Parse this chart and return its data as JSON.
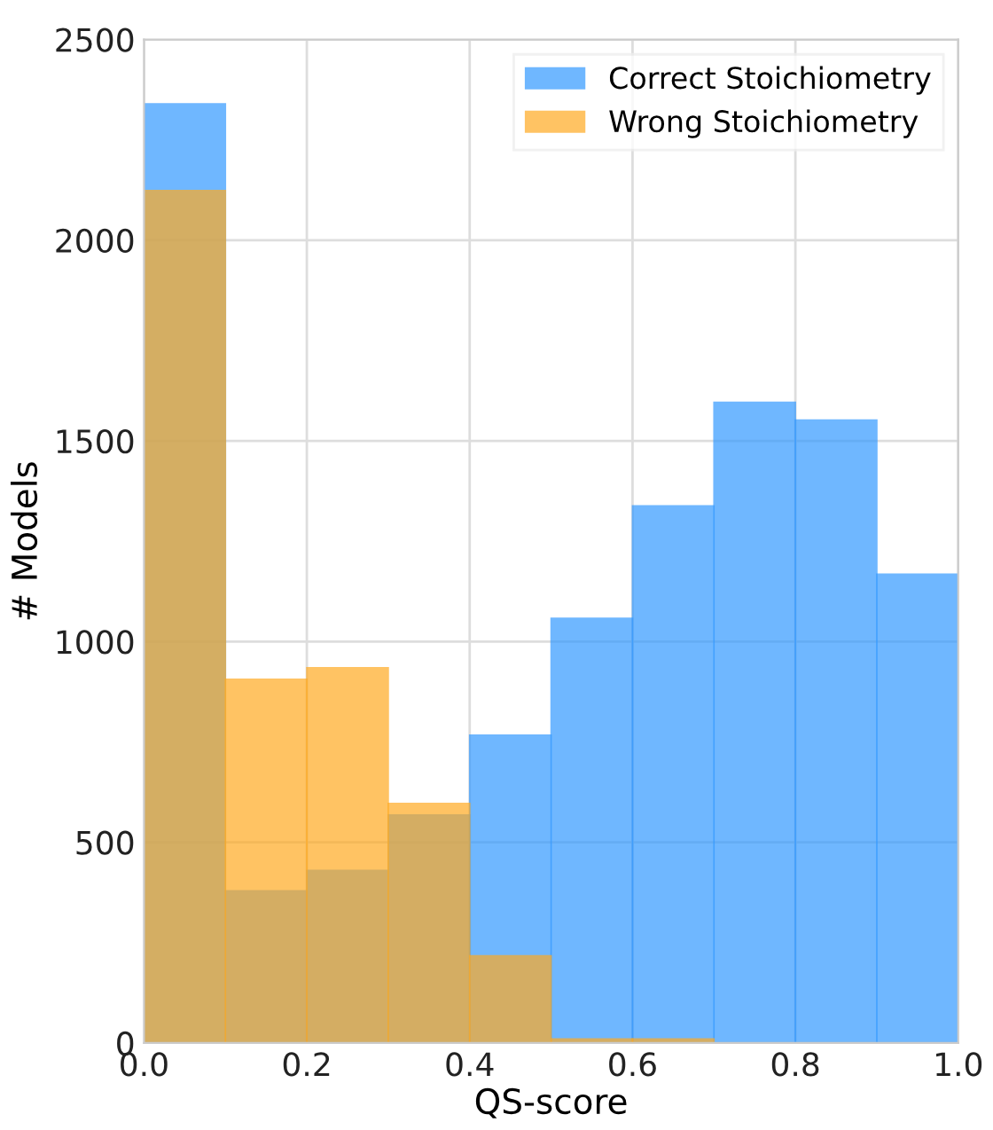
{
  "chart_data": {
    "type": "histogram",
    "xlabel": "QS-score",
    "ylabel": "# Models",
    "bins": [
      0.0,
      0.1,
      0.2,
      0.3,
      0.4,
      0.5,
      0.6,
      0.7,
      0.8,
      0.9,
      1.0
    ],
    "series": [
      {
        "name": "Correct Stoichiometry",
        "color": "#3399ff",
        "values": [
          2340,
          379,
          430,
          568,
          767,
          1058,
          1338,
          1596,
          1552,
          1168
        ]
      },
      {
        "name": "Wrong Stoichiometry",
        "color": "#ffaa22",
        "values": [
          2124,
          906,
          935,
          597,
          217,
          10,
          10,
          0,
          0,
          0
        ]
      }
    ],
    "xlim": [
      0.0,
      1.0
    ],
    "ylim": [
      0,
      2500
    ],
    "xticks": [
      {
        "value": 0.0,
        "label": "0.0"
      },
      {
        "value": 0.2,
        "label": "0.2"
      },
      {
        "value": 0.4,
        "label": "0.4"
      },
      {
        "value": 0.6,
        "label": "0.6"
      },
      {
        "value": 0.8,
        "label": "0.8"
      },
      {
        "value": 1.0,
        "label": "1.0"
      }
    ],
    "yticks": [
      0,
      500,
      1000,
      1500,
      2000,
      2500
    ],
    "grid": true,
    "legend": "top right"
  }
}
